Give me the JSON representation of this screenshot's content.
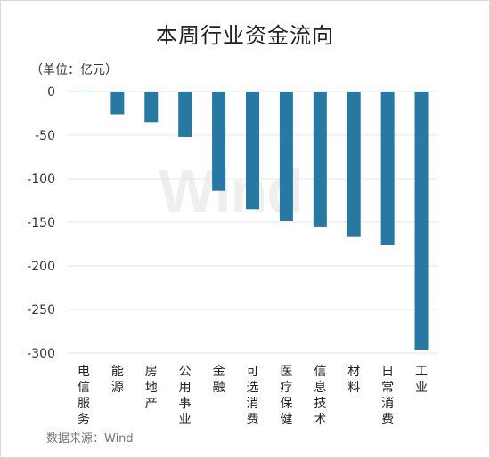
{
  "chart_data": {
    "type": "bar",
    "title": "本周行业资金流向",
    "unit_label": "（单位：亿元）",
    "categories": [
      "电信服务",
      "能源",
      "房地产",
      "公用事业",
      "金融",
      "可选消费",
      "医疗保健",
      "信息技术",
      "材料",
      "日常消费",
      "工业"
    ],
    "values": [
      -1,
      -26,
      -35,
      -52,
      -114,
      -135,
      -148,
      -155,
      -166,
      -176,
      -296
    ],
    "ylim": [
      -300,
      0
    ],
    "yticks": [
      0,
      -50,
      -100,
      -150,
      -200,
      -250,
      -300
    ],
    "bar_color": "#2778a3",
    "grid": true,
    "source": "数据来源：Wind",
    "watermark": "Wind"
  }
}
